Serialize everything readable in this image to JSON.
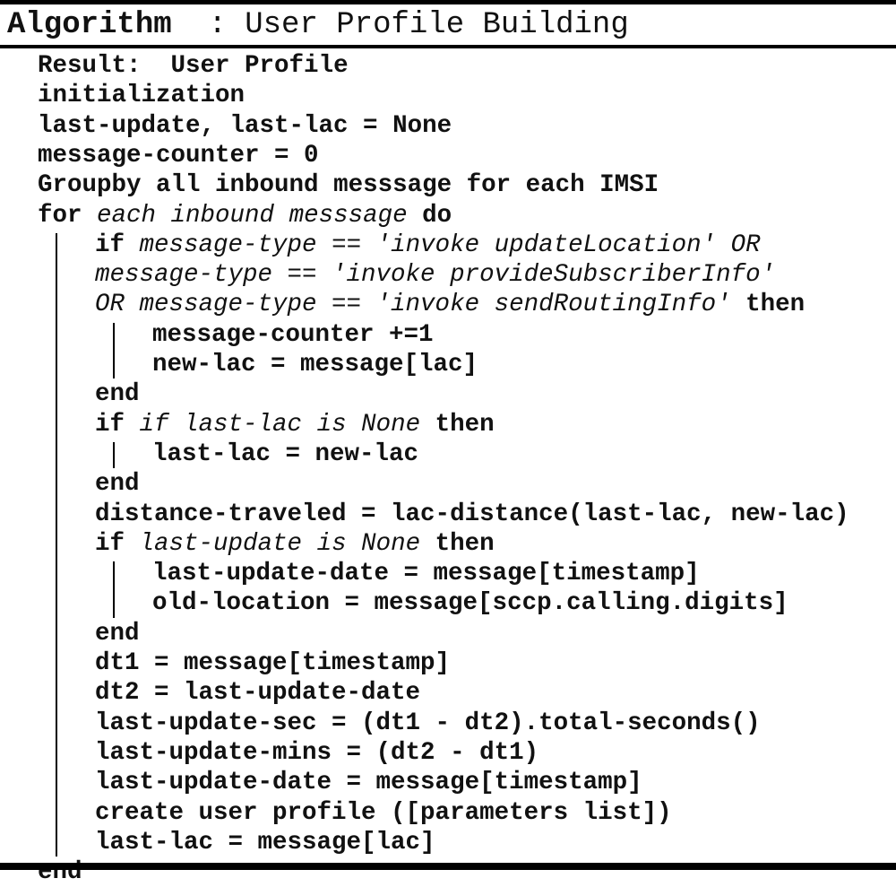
{
  "header": {
    "keyword": "Algorithm",
    "title": "  : User Profile Building"
  },
  "lines": [
    {
      "indent": 0,
      "segs": [
        {
          "t": "Result:",
          "k": "kw"
        },
        {
          "t": "  User Profile"
        }
      ]
    },
    {
      "indent": 0,
      "segs": [
        {
          "t": "initialization"
        }
      ]
    },
    {
      "indent": 0,
      "segs": [
        {
          "t": "last-update, last-lac = None"
        }
      ]
    },
    {
      "indent": 0,
      "segs": [
        {
          "t": "message-counter = 0"
        }
      ]
    },
    {
      "indent": 0,
      "segs": [
        {
          "t": "Groupby",
          "k": "kw"
        },
        {
          "t": " all inbound messsage for each IMSI"
        }
      ]
    },
    {
      "indent": 0,
      "segs": [
        {
          "t": "for",
          "k": "kw"
        },
        {
          "t": " "
        },
        {
          "t": "each inbound messsage",
          "k": "cond"
        },
        {
          "t": " "
        },
        {
          "t": "do",
          "k": "kw"
        }
      ]
    },
    {
      "indent": 1,
      "segs": [
        {
          "t": "if",
          "k": "kw"
        },
        {
          "t": " "
        },
        {
          "t": "message-type == 'invoke updateLocation' OR",
          "k": "cond"
        }
      ]
    },
    {
      "indent": 1,
      "segs": [
        {
          "t": "message-type == 'invoke provideSubscriberInfo'",
          "k": "cond"
        }
      ]
    },
    {
      "indent": 1,
      "segs": [
        {
          "t": "OR message-type == 'invoke sendRoutingInfo'",
          "k": "cond"
        },
        {
          "t": " "
        },
        {
          "t": "then",
          "k": "kw"
        }
      ]
    },
    {
      "indent": 2,
      "segs": [
        {
          "t": "message-counter +=1"
        }
      ]
    },
    {
      "indent": 2,
      "segs": [
        {
          "t": "new-lac = message[lac]"
        }
      ]
    },
    {
      "indent": 1,
      "segs": [
        {
          "t": "end",
          "k": "kw"
        }
      ]
    },
    {
      "indent": 1,
      "segs": [
        {
          "t": "if",
          "k": "kw"
        },
        {
          "t": " "
        },
        {
          "t": "if last-lac is None",
          "k": "cond"
        },
        {
          "t": " "
        },
        {
          "t": "then",
          "k": "kw"
        }
      ]
    },
    {
      "indent": 2,
      "segs": [
        {
          "t": "last-lac = new-lac"
        }
      ]
    },
    {
      "indent": 1,
      "segs": [
        {
          "t": "end",
          "k": "kw"
        }
      ]
    },
    {
      "indent": 1,
      "segs": [
        {
          "t": "distance-traveled = lac-distance(last-lac, new-lac)"
        }
      ]
    },
    {
      "indent": 1,
      "segs": [
        {
          "t": "if",
          "k": "kw"
        },
        {
          "t": " "
        },
        {
          "t": "last-update is None",
          "k": "cond"
        },
        {
          "t": " "
        },
        {
          "t": "then",
          "k": "kw"
        }
      ]
    },
    {
      "indent": 2,
      "segs": [
        {
          "t": "last-update-date = message[timestamp]"
        }
      ]
    },
    {
      "indent": 2,
      "segs": [
        {
          "t": "old-location = message[sccp.calling.digits]"
        }
      ]
    },
    {
      "indent": 1,
      "segs": [
        {
          "t": "end",
          "k": "kw"
        }
      ]
    },
    {
      "indent": 1,
      "segs": [
        {
          "t": "dt1 = message[timestamp]"
        }
      ]
    },
    {
      "indent": 1,
      "segs": [
        {
          "t": "dt2 = last-update-date"
        }
      ]
    },
    {
      "indent": 1,
      "segs": [
        {
          "t": "last-update-sec = (dt1 - dt2).total-seconds()"
        }
      ]
    },
    {
      "indent": 1,
      "segs": [
        {
          "t": "last-update-mins = (dt2 - dt1)"
        }
      ]
    },
    {
      "indent": 1,
      "segs": [
        {
          "t": "last-update-date = message[timestamp]"
        }
      ]
    },
    {
      "indent": 1,
      "segs": [
        {
          "t": "create user profile ([parameters list])"
        }
      ]
    },
    {
      "indent": 1,
      "segs": [
        {
          "t": "last-lac = message[lac]"
        }
      ]
    },
    {
      "indent": 0,
      "segs": [
        {
          "t": "end",
          "k": "kw"
        }
      ]
    }
  ]
}
